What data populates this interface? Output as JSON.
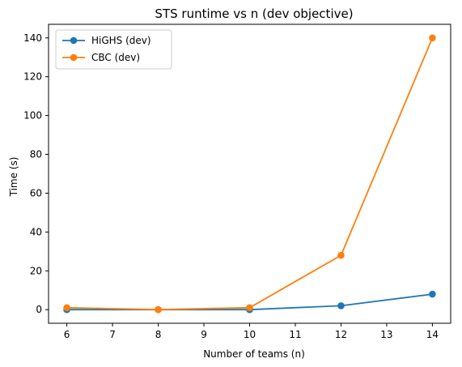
{
  "chart_data": {
    "type": "line",
    "title": "STS runtime vs n (dev objective)",
    "xlabel": "Number of teams (n)",
    "ylabel": "Time (s)",
    "x": [
      6,
      8,
      10,
      12,
      14
    ],
    "xticks": [
      6,
      7,
      8,
      9,
      10,
      11,
      12,
      13,
      14
    ],
    "yticks": [
      0,
      20,
      40,
      60,
      80,
      100,
      120,
      140
    ],
    "xlim": [
      5.6,
      14.4
    ],
    "ylim": [
      -7,
      147
    ],
    "grid": false,
    "legend_position": "upper-left",
    "series": [
      {
        "name": "HiGHS (dev)",
        "color": "#1f77b4",
        "marker": "circle",
        "values": [
          0,
          0,
          0,
          2,
          8
        ]
      },
      {
        "name": "CBC (dev)",
        "color": "#ff7f0e",
        "marker": "circle",
        "values": [
          1,
          0,
          1,
          28,
          140
        ]
      }
    ]
  }
}
